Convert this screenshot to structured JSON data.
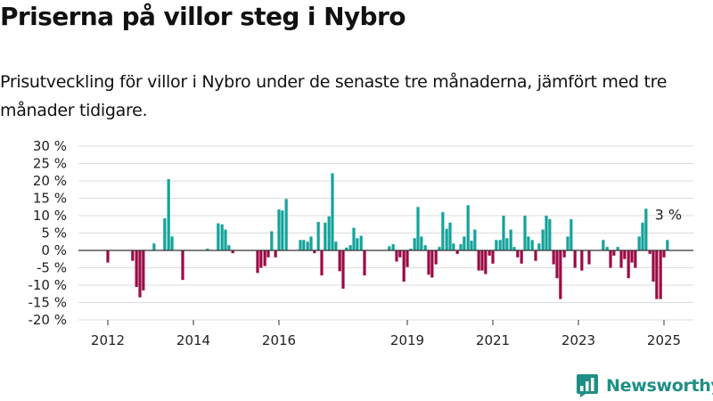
{
  "title": "Priserna på villor steg i Nybro",
  "subtitle": "Prisutveckling för villor i Nybro under de senaste tre månaderna, jämfört med tre månader tidigare.",
  "brand": {
    "name": "Newsworthy",
    "color": "#1f8f86"
  },
  "chart_data": {
    "type": "bar",
    "y_ticks": [
      30,
      25,
      20,
      15,
      10,
      5,
      0,
      -5,
      -10,
      -15,
      -20
    ],
    "y_tick_labels": [
      "30 %",
      "25 %",
      "20 %",
      "15 %",
      "10 %",
      "5 %",
      "0 %",
      "-5 %",
      "-10 %",
      "-15 %",
      "-20 %"
    ],
    "ylim": [
      -20,
      30
    ],
    "x_ticks": [
      2012,
      2014,
      2016,
      2019,
      2021,
      2023,
      2025
    ],
    "x_tick_labels": [
      "2012",
      "2014",
      "2016",
      "2019",
      "2021",
      "2023",
      "2025"
    ],
    "grid": true,
    "colors": {
      "positive": "#13a39a",
      "negative": "#9b0a45"
    },
    "last_value_label": "3 %",
    "points": [
      {
        "x": 2012.0,
        "y": -3.5
      },
      {
        "x": 2012.58,
        "y": -3.0
      },
      {
        "x": 2012.67,
        "y": -10.5
      },
      {
        "x": 2012.75,
        "y": -13.5
      },
      {
        "x": 2012.83,
        "y": -11.5
      },
      {
        "x": 2013.08,
        "y": 2.0
      },
      {
        "x": 2013.33,
        "y": 9.2
      },
      {
        "x": 2013.42,
        "y": 20.5
      },
      {
        "x": 2013.5,
        "y": 4.0
      },
      {
        "x": 2013.75,
        "y": -8.5
      },
      {
        "x": 2014.33,
        "y": 0.5
      },
      {
        "x": 2014.58,
        "y": 7.8
      },
      {
        "x": 2014.67,
        "y": 7.5
      },
      {
        "x": 2014.75,
        "y": 6.0
      },
      {
        "x": 2014.83,
        "y": 1.5
      },
      {
        "x": 2014.92,
        "y": -0.8
      },
      {
        "x": 2015.5,
        "y": -6.5
      },
      {
        "x": 2015.58,
        "y": -5.0
      },
      {
        "x": 2015.67,
        "y": -4.5
      },
      {
        "x": 2015.75,
        "y": -2.0
      },
      {
        "x": 2015.83,
        "y": 5.5
      },
      {
        "x": 2015.92,
        "y": -2.0
      },
      {
        "x": 2016.0,
        "y": 11.8
      },
      {
        "x": 2016.08,
        "y": 11.5
      },
      {
        "x": 2016.17,
        "y": 14.8
      },
      {
        "x": 2016.5,
        "y": 3.0
      },
      {
        "x": 2016.58,
        "y": 3.0
      },
      {
        "x": 2016.67,
        "y": 2.5
      },
      {
        "x": 2016.75,
        "y": 4.0
      },
      {
        "x": 2016.83,
        "y": -0.8
      },
      {
        "x": 2016.92,
        "y": 8.2
      },
      {
        "x": 2017.0,
        "y": -7.2
      },
      {
        "x": 2017.08,
        "y": 8.0
      },
      {
        "x": 2017.17,
        "y": 9.8
      },
      {
        "x": 2017.25,
        "y": 22.2
      },
      {
        "x": 2017.33,
        "y": 2.5
      },
      {
        "x": 2017.42,
        "y": -6.0
      },
      {
        "x": 2017.5,
        "y": -11.0
      },
      {
        "x": 2017.58,
        "y": 0.8
      },
      {
        "x": 2017.67,
        "y": 1.5
      },
      {
        "x": 2017.75,
        "y": 6.5
      },
      {
        "x": 2017.83,
        "y": 3.5
      },
      {
        "x": 2017.92,
        "y": 4.2
      },
      {
        "x": 2018.0,
        "y": -7.2
      },
      {
        "x": 2018.58,
        "y": 1.2
      },
      {
        "x": 2018.67,
        "y": 1.8
      },
      {
        "x": 2018.75,
        "y": -3.2
      },
      {
        "x": 2018.83,
        "y": -2.0
      },
      {
        "x": 2018.92,
        "y": -9.0
      },
      {
        "x": 2019.0,
        "y": -4.8
      },
      {
        "x": 2019.08,
        "y": 0.5
      },
      {
        "x": 2019.17,
        "y": 3.5
      },
      {
        "x": 2019.25,
        "y": 12.5
      },
      {
        "x": 2019.33,
        "y": 4.0
      },
      {
        "x": 2019.42,
        "y": 1.5
      },
      {
        "x": 2019.5,
        "y": -7.0
      },
      {
        "x": 2019.58,
        "y": -7.8
      },
      {
        "x": 2019.67,
        "y": -4.0
      },
      {
        "x": 2019.75,
        "y": 1.0
      },
      {
        "x": 2019.83,
        "y": 11.0
      },
      {
        "x": 2019.92,
        "y": 6.2
      },
      {
        "x": 2020.0,
        "y": 8.0
      },
      {
        "x": 2020.08,
        "y": 2.0
      },
      {
        "x": 2020.17,
        "y": -1.0
      },
      {
        "x": 2020.25,
        "y": 1.8
      },
      {
        "x": 2020.33,
        "y": 4.0
      },
      {
        "x": 2020.42,
        "y": 13.0
      },
      {
        "x": 2020.5,
        "y": 2.8
      },
      {
        "x": 2020.58,
        "y": 6.0
      },
      {
        "x": 2020.67,
        "y": -5.8
      },
      {
        "x": 2020.75,
        "y": -5.8
      },
      {
        "x": 2020.83,
        "y": -6.8
      },
      {
        "x": 2020.92,
        "y": -1.5
      },
      {
        "x": 2021.0,
        "y": -3.8
      },
      {
        "x": 2021.08,
        "y": 3.0
      },
      {
        "x": 2021.17,
        "y": 3.0
      },
      {
        "x": 2021.25,
        "y": 10.0
      },
      {
        "x": 2021.33,
        "y": 3.5
      },
      {
        "x": 2021.42,
        "y": 6.0
      },
      {
        "x": 2021.5,
        "y": 1.0
      },
      {
        "x": 2021.58,
        "y": -2.0
      },
      {
        "x": 2021.67,
        "y": -3.8
      },
      {
        "x": 2021.75,
        "y": 10.0
      },
      {
        "x": 2021.83,
        "y": 4.0
      },
      {
        "x": 2021.92,
        "y": 3.0
      },
      {
        "x": 2022.0,
        "y": -3.0
      },
      {
        "x": 2022.08,
        "y": 2.0
      },
      {
        "x": 2022.17,
        "y": 6.0
      },
      {
        "x": 2022.25,
        "y": 10.0
      },
      {
        "x": 2022.33,
        "y": 9.0
      },
      {
        "x": 2022.42,
        "y": -4.0
      },
      {
        "x": 2022.5,
        "y": -8.0
      },
      {
        "x": 2022.58,
        "y": -14.0
      },
      {
        "x": 2022.67,
        "y": -2.0
      },
      {
        "x": 2022.75,
        "y": 4.0
      },
      {
        "x": 2022.83,
        "y": 9.0
      },
      {
        "x": 2022.92,
        "y": -5.0
      },
      {
        "x": 2023.08,
        "y": -5.8
      },
      {
        "x": 2023.25,
        "y": -4.0
      },
      {
        "x": 2023.58,
        "y": 3.0
      },
      {
        "x": 2023.67,
        "y": 1.0
      },
      {
        "x": 2023.75,
        "y": -5.0
      },
      {
        "x": 2023.83,
        "y": -1.5
      },
      {
        "x": 2023.92,
        "y": 1.0
      },
      {
        "x": 2024.0,
        "y": -5.0
      },
      {
        "x": 2024.08,
        "y": -2.5
      },
      {
        "x": 2024.17,
        "y": -8.0
      },
      {
        "x": 2024.25,
        "y": -3.5
      },
      {
        "x": 2024.33,
        "y": -5.0
      },
      {
        "x": 2024.42,
        "y": 4.0
      },
      {
        "x": 2024.5,
        "y": 8.0
      },
      {
        "x": 2024.58,
        "y": 12.0
      },
      {
        "x": 2024.67,
        "y": -1.0
      },
      {
        "x": 2024.75,
        "y": -9.0
      },
      {
        "x": 2024.83,
        "y": -14.0
      },
      {
        "x": 2024.92,
        "y": -14.0
      },
      {
        "x": 2025.0,
        "y": -2.0
      },
      {
        "x": 2025.08,
        "y": 3.0
      }
    ]
  }
}
